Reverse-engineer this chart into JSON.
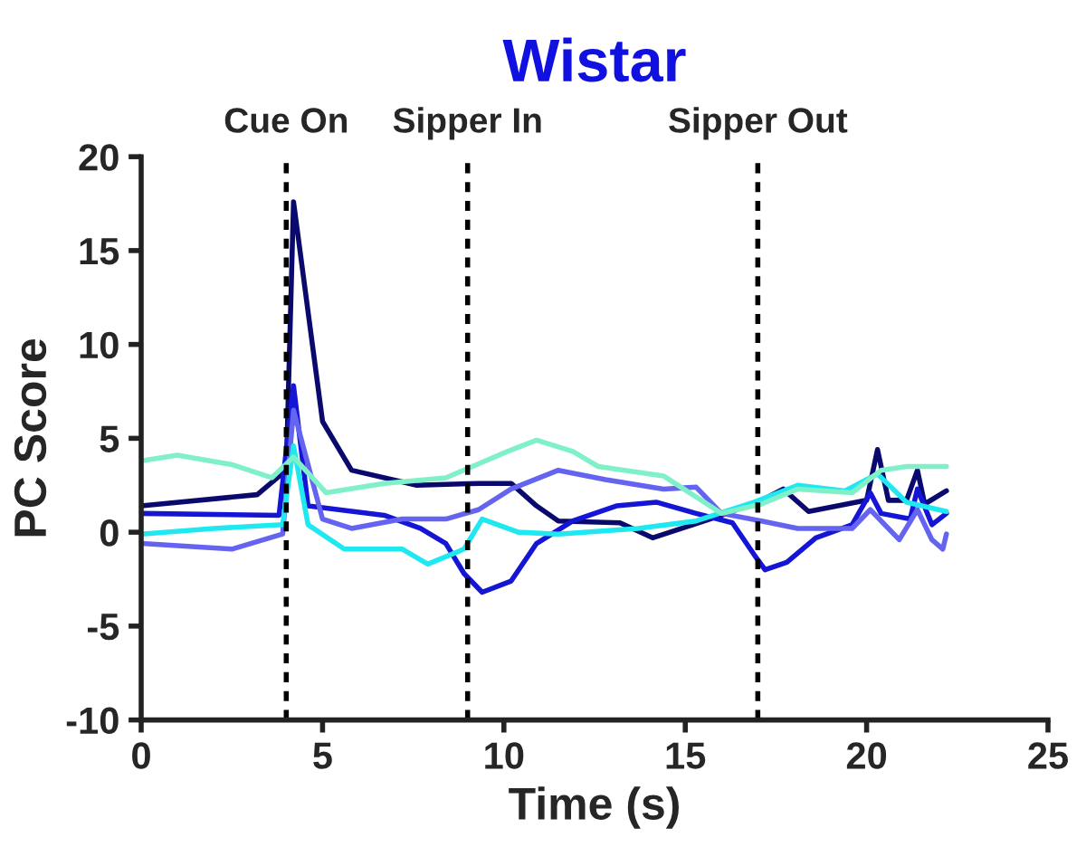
{
  "chart_data": {
    "type": "line",
    "title": "Wistar",
    "xlabel": "Time (s)",
    "ylabel": "PC Score",
    "xlim": [
      0,
      25
    ],
    "xticks": [
      0,
      5,
      10,
      15,
      20,
      25
    ],
    "ylim": [
      -10,
      20
    ],
    "yticks": [
      -10,
      -5,
      0,
      5,
      10,
      15,
      20
    ],
    "grid": false,
    "legend": false,
    "marker": "none",
    "line_style": "solid",
    "ref_lines": [
      {
        "axis": "x",
        "value": 4,
        "label": "Cue On",
        "color": "#000000",
        "line_style": "dashed"
      },
      {
        "axis": "x",
        "value": 9,
        "label": "Sipper In",
        "color": "#000000",
        "line_style": "dashed"
      },
      {
        "axis": "x",
        "value": 17,
        "label": "Sipper Out",
        "color": "#000000",
        "line_style": "dashed"
      }
    ],
    "series": [
      {
        "color": "#0a0a6e",
        "x": [
          0,
          3.2,
          4.0,
          4.2,
          5.0,
          5.8,
          7.6,
          9.3,
          10.2,
          10.9,
          11.5,
          13.2,
          14.1,
          16.0,
          17.1,
          17.7,
          18.4,
          20.0,
          20.3,
          20.6,
          21.1,
          21.4,
          21.6,
          22.2
        ],
        "values": [
          1.4,
          2.0,
          3.3,
          17.6,
          5.9,
          3.3,
          2.5,
          2.6,
          2.6,
          1.4,
          0.6,
          0.5,
          -0.3,
          0.9,
          1.7,
          2.3,
          1.1,
          1.7,
          4.4,
          1.7,
          1.7,
          3.3,
          1.5,
          2.2
        ]
      },
      {
        "color": "#1515d5",
        "x": [
          0,
          3.8,
          4.2,
          4.6,
          6.7,
          7.7,
          8.4,
          8.9,
          9.4,
          10.2,
          10.9,
          11.9,
          13.1,
          14.2,
          15.3,
          16.3,
          16.9,
          17.2,
          17.8,
          18.6,
          19.6,
          20.1,
          20.4,
          21.2,
          21.4,
          21.8,
          22.2
        ],
        "values": [
          1.0,
          0.9,
          7.8,
          1.4,
          0.9,
          0.2,
          -0.6,
          -2.2,
          -3.2,
          -2.6,
          -0.6,
          0.6,
          1.4,
          1.6,
          1.0,
          0.5,
          -1.2,
          -2.0,
          -1.6,
          -0.3,
          0.4,
          2.1,
          1.0,
          0.7,
          2.3,
          0.4,
          1.0
        ]
      },
      {
        "color": "#6464f0",
        "x": [
          0,
          2.5,
          3.9,
          4.2,
          5.0,
          5.8,
          7.2,
          8.4,
          9.3,
          10.2,
          11.5,
          12.8,
          14.4,
          15.3,
          16.0,
          17.1,
          18.1,
          19.6,
          20.1,
          20.9,
          21.4,
          21.8,
          22.1,
          22.2
        ],
        "values": [
          -0.6,
          -0.9,
          -0.1,
          6.5,
          0.7,
          0.2,
          0.7,
          0.7,
          1.2,
          2.3,
          3.3,
          2.8,
          2.3,
          2.4,
          1.0,
          0.6,
          0.2,
          0.2,
          1.2,
          -0.4,
          1.2,
          -0.4,
          -0.9,
          -0.1
        ]
      },
      {
        "color": "#20e8f0",
        "x": [
          0,
          2.0,
          3.9,
          4.2,
          4.6,
          5.6,
          7.2,
          7.9,
          8.9,
          9.4,
          10.4,
          11.5,
          13.7,
          15.3,
          16.9,
          18.1,
          19.4,
          20.3,
          21.1,
          22.2
        ],
        "values": [
          -0.1,
          0.2,
          0.4,
          4.6,
          0.4,
          -0.9,
          -0.9,
          -1.7,
          -0.9,
          0.7,
          0.0,
          -0.1,
          0.2,
          0.6,
          1.6,
          2.5,
          2.2,
          3.1,
          1.6,
          1.1
        ]
      },
      {
        "color": "#80f0c8",
        "x": [
          0,
          1.0,
          2.5,
          3.6,
          4.2,
          5.1,
          6.7,
          8.4,
          10.1,
          10.9,
          11.9,
          12.6,
          14.4,
          16.0,
          17.1,
          18.1,
          19.6,
          20.4,
          21.1,
          22.2
        ],
        "values": [
          3.8,
          4.1,
          3.6,
          2.9,
          4.0,
          2.1,
          2.6,
          2.9,
          4.3,
          4.9,
          4.3,
          3.5,
          3.0,
          1.0,
          1.5,
          2.3,
          2.1,
          3.3,
          3.5,
          3.5
        ]
      }
    ]
  }
}
